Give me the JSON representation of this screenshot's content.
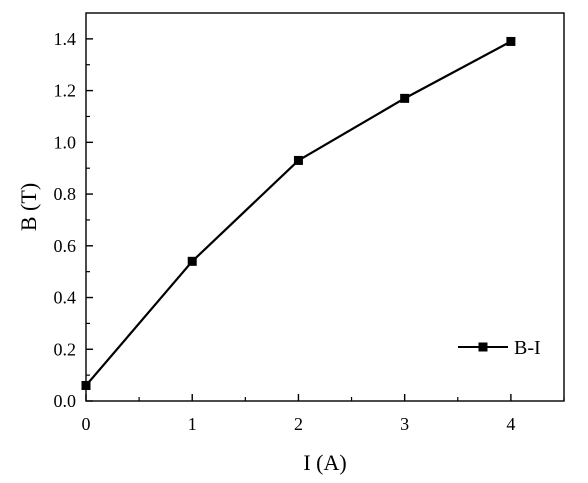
{
  "chart_data": {
    "type": "line",
    "title": "",
    "xlabel": "I (A)",
    "ylabel": "B (T)",
    "x": [
      0,
      1,
      2,
      3,
      4
    ],
    "series": [
      {
        "name": "B-I",
        "values": [
          0.06,
          0.54,
          0.93,
          1.17,
          1.39
        ],
        "marker": "square",
        "color": "#000000"
      }
    ],
    "xlim": [
      0,
      4.5
    ],
    "ylim": [
      0,
      1.5
    ],
    "xticks": [
      0,
      1,
      2,
      3,
      4
    ],
    "xtick_labels": [
      "0",
      "1",
      "2",
      "3",
      "4"
    ],
    "yticks": [
      0.0,
      0.2,
      0.4,
      0.6,
      0.8,
      1.0,
      1.2,
      1.4
    ],
    "ytick_labels": [
      "0.0",
      "0.2",
      "0.4",
      "0.6",
      "0.8",
      "1.0",
      "1.2",
      "1.4"
    ],
    "grid": false,
    "legend_position": "bottom-right"
  }
}
